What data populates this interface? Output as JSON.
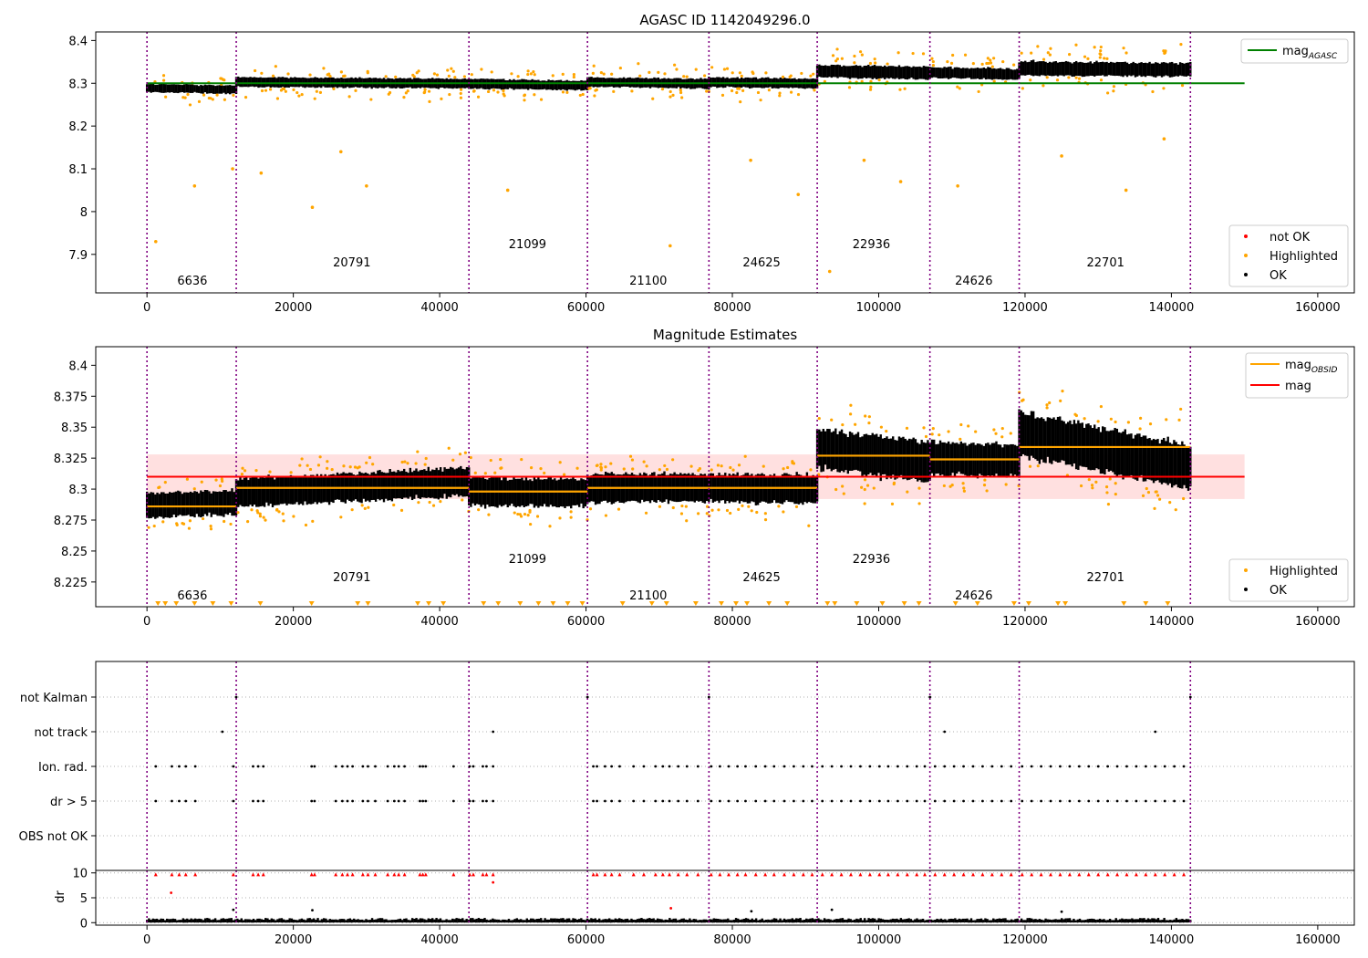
{
  "chart_data": [
    {
      "type": "scatter",
      "title": "AGASC ID 1142049296.0",
      "xlim": [
        -7000,
        165000
      ],
      "ylim": [
        7.81,
        8.42
      ],
      "x_ticks": [
        0,
        20000,
        40000,
        60000,
        80000,
        100000,
        120000,
        140000,
        160000
      ],
      "y_ticks": [
        7.9,
        8.0,
        8.1,
        8.2,
        8.3,
        8.4
      ],
      "obs_boundaries": [
        0,
        12200,
        44000,
        60200,
        76800,
        91600,
        107000,
        119200,
        142600
      ],
      "obsids": [
        {
          "label": "6636",
          "x": 6200,
          "level": "low"
        },
        {
          "label": "20791",
          "x": 28000,
          "level": "mid"
        },
        {
          "label": "21099",
          "x": 52000,
          "level": "high"
        },
        {
          "label": "21100",
          "x": 68500,
          "level": "low"
        },
        {
          "label": "24625",
          "x": 84000,
          "level": "mid"
        },
        {
          "label": "22936",
          "x": 99000,
          "level": "high"
        },
        {
          "label": "24626",
          "x": 113000,
          "level": "low"
        },
        {
          "label": "22701",
          "x": 131000,
          "level": "mid"
        }
      ],
      "segment_levels": [
        8.287,
        8.301,
        8.297,
        8.301,
        8.301,
        8.326,
        8.323,
        8.333
      ],
      "mag_agasc": 8.3,
      "mag_agasc_x_range": [
        0,
        150000
      ],
      "highlighted_outliers": [
        {
          "x": 1200,
          "y": 7.93
        },
        {
          "x": 6500,
          "y": 8.06
        },
        {
          "x": 11700,
          "y": 8.1
        },
        {
          "x": 15600,
          "y": 8.09
        },
        {
          "x": 22600,
          "y": 8.01
        },
        {
          "x": 26500,
          "y": 8.14
        },
        {
          "x": 30000,
          "y": 8.06
        },
        {
          "x": 49300,
          "y": 8.05
        },
        {
          "x": 71500,
          "y": 7.92
        },
        {
          "x": 82500,
          "y": 8.12
        },
        {
          "x": 89000,
          "y": 8.04
        },
        {
          "x": 93300,
          "y": 7.86
        },
        {
          "x": 98000,
          "y": 8.12
        },
        {
          "x": 103000,
          "y": 8.07
        },
        {
          "x": 110800,
          "y": 8.06
        },
        {
          "x": 125000,
          "y": 8.13
        },
        {
          "x": 133800,
          "y": 8.05
        },
        {
          "x": 139000,
          "y": 8.17
        }
      ],
      "legend_lines": [
        {
          "label": "mag",
          "sub": "AGASC",
          "color": "#008000"
        }
      ],
      "legend_points": [
        {
          "label": "not OK",
          "color": "#ff0000"
        },
        {
          "label": "Highlighted",
          "color": "#ffa500"
        },
        {
          "label": "OK",
          "color": "#000000"
        }
      ],
      "legend_placement": [
        "top-right",
        "bottom-right"
      ],
      "grid": false
    },
    {
      "type": "scatter",
      "title": "Magnitude Estimates",
      "xlim": [
        -7000,
        165000
      ],
      "ylim": [
        8.205,
        8.415
      ],
      "x_ticks": [
        0,
        20000,
        40000,
        60000,
        80000,
        100000,
        120000,
        140000,
        160000
      ],
      "y_ticks": [
        8.225,
        8.25,
        8.275,
        8.3,
        8.325,
        8.35,
        8.375,
        8.4
      ],
      "obs_boundaries": [
        0,
        12200,
        44000,
        60200,
        76800,
        91600,
        107000,
        119200,
        142600
      ],
      "obsids": [
        {
          "label": "6636",
          "x": 6200,
          "level": "low"
        },
        {
          "label": "20791",
          "x": 28000,
          "level": "mid"
        },
        {
          "label": "21099",
          "x": 52000,
          "level": "high"
        },
        {
          "label": "21100",
          "x": 68500,
          "level": "low"
        },
        {
          "label": "24625",
          "x": 84000,
          "level": "mid"
        },
        {
          "label": "22936",
          "x": 99000,
          "level": "high"
        },
        {
          "label": "24626",
          "x": 113000,
          "level": "low"
        },
        {
          "label": "22701",
          "x": 131000,
          "level": "mid"
        }
      ],
      "mag_obsid": [
        8.286,
        8.301,
        8.298,
        8.301,
        8.301,
        8.327,
        8.324,
        8.334
      ],
      "mag": 8.31,
      "mag_band": [
        8.292,
        8.328
      ],
      "mag_x_range": [
        0,
        150000
      ],
      "segment_trends": [
        [
          8.287,
          8.289
        ],
        [
          8.297,
          8.306
        ],
        [
          8.298,
          8.297
        ],
        [
          8.301,
          8.301
        ],
        [
          8.301,
          8.3
        ],
        [
          8.333,
          8.322
        ],
        [
          8.325,
          8.323
        ],
        [
          8.345,
          8.318
        ]
      ],
      "floor_markers_x": [
        1500,
        2500,
        4000,
        6500,
        9000,
        11500,
        15500,
        22500,
        28800,
        30200,
        37000,
        38500,
        40500,
        46000,
        48000,
        51000,
        53500,
        55500,
        57500,
        59500,
        65000,
        69000,
        71000,
        75000,
        78500,
        80500,
        82000,
        85000,
        87500,
        93000,
        94000,
        97000,
        100500,
        103500,
        105500,
        110500,
        113500,
        118500,
        120500,
        124500,
        125500,
        133500,
        136500,
        139500
      ],
      "legend_lines": [
        {
          "label": "mag",
          "sub": "OBSID",
          "color": "#ffa500"
        },
        {
          "label": "mag",
          "sub": "",
          "color": "#ff0000"
        }
      ],
      "legend_points": [
        {
          "label": "Highlighted",
          "color": "#ffa500"
        },
        {
          "label": "OK",
          "color": "#000000"
        }
      ],
      "legend_placement": [
        "top-right",
        "bottom-right"
      ],
      "grid": false
    },
    {
      "type": "scatter",
      "title": "",
      "xlim": [
        -7000,
        165000
      ],
      "x_ticks": [
        0,
        20000,
        40000,
        60000,
        80000,
        100000,
        120000,
        140000,
        160000
      ],
      "flag_rows": [
        "not Kalman",
        "not track",
        "Ion. rad.",
        "dr > 5",
        "OBS not OK"
      ],
      "obs_boundaries": [
        0,
        12200,
        44000,
        60200,
        76800,
        91600,
        107000,
        119200,
        142600
      ],
      "not_kalman_x": [
        12200,
        60200,
        76800,
        107000,
        142600
      ],
      "not_track_x": [
        10300,
        47300,
        109000,
        137800
      ],
      "ion_rad_x": [
        1200,
        3400,
        4400,
        5300,
        6600,
        11800,
        14500,
        15200,
        15900,
        22500,
        22900,
        25800,
        26700,
        27400,
        28100,
        29500,
        30200,
        31200,
        32900,
        33800,
        34400,
        35200,
        37300,
        37700,
        38100,
        41900,
        44100,
        44600,
        45900,
        46400,
        47300,
        61000,
        61500,
        62600,
        63500,
        64600,
        66500,
        67900,
        69500,
        70500,
        71400,
        72600,
        73800,
        75300,
        77100,
        78300,
        79500,
        80700,
        81800,
        83200,
        84500,
        85700,
        87100,
        88400,
        89700,
        90900,
        92300,
        93600,
        94900,
        96200,
        97500,
        98800,
        100100,
        101300,
        102600,
        103900,
        105200,
        106300,
        107700,
        109000,
        110300,
        111600,
        112900,
        114200,
        115500,
        116800,
        118100,
        119600,
        120900,
        122200,
        123500,
        124800,
        126100,
        127400,
        128700,
        130000,
        131300,
        132600,
        133900,
        135200,
        136500,
        137800,
        139100,
        140400,
        141700
      ],
      "dr_gt5_x": [
        1200,
        3400,
        4400,
        5300,
        6600,
        11800,
        14500,
        15200,
        15900,
        22500,
        22900,
        25800,
        26700,
        27400,
        28100,
        29500,
        30200,
        31200,
        32900,
        33800,
        34400,
        35200,
        37300,
        37700,
        38100,
        41900,
        44100,
        44600,
        45900,
        46400,
        47300,
        61000,
        61500,
        62600,
        63500,
        64600,
        66500,
        67900,
        69500,
        70500,
        71400,
        72600,
        73800,
        75300,
        77100,
        78300,
        79500,
        80700,
        81800,
        83200,
        84500,
        85700,
        87100,
        88400,
        89700,
        90900,
        92300,
        93600,
        94900,
        96200,
        97500,
        98800,
        100100,
        101300,
        102600,
        103900,
        105200,
        106300,
        107700,
        109000,
        110300,
        111600,
        112900,
        114200,
        115500,
        116800,
        118100,
        119600,
        120900,
        122200,
        123500,
        124800,
        126100,
        127400,
        128700,
        130000,
        131300,
        132600,
        133900,
        135200,
        136500,
        137800,
        139100,
        140400,
        141700
      ],
      "grid": true
    },
    {
      "type": "scatter",
      "title": "",
      "ylabel": "dr",
      "xlim": [
        -7000,
        165000
      ],
      "ylim": [
        -0.5,
        10.5
      ],
      "x_ticks": [
        0,
        20000,
        40000,
        60000,
        80000,
        100000,
        120000,
        140000,
        160000
      ],
      "y_ticks": [
        0,
        5,
        10
      ],
      "obs_boundaries": [
        0,
        12200,
        44000,
        60200,
        76800,
        91600,
        107000,
        119200,
        142600
      ],
      "clipped_dr_x": [
        1200,
        3400,
        4400,
        5300,
        6600,
        11800,
        14500,
        15200,
        15900,
        22500,
        22900,
        25800,
        26700,
        27400,
        28100,
        29500,
        30200,
        31200,
        32900,
        33800,
        34400,
        35200,
        37300,
        37700,
        38100,
        41900,
        44100,
        44600,
        45900,
        46400,
        47300,
        61000,
        61500,
        62600,
        63500,
        64600,
        66500,
        67900,
        69500,
        70500,
        71400,
        72600,
        73800,
        75300,
        77100,
        78300,
        79500,
        80700,
        81800,
        83200,
        84500,
        85700,
        87100,
        88400,
        89700,
        90900,
        92300,
        93600,
        94900,
        96200,
        97500,
        98800,
        100100,
        101300,
        102600,
        103900,
        105200,
        106300,
        107700,
        109000,
        110300,
        111600,
        112900,
        114200,
        115500,
        116800,
        118100,
        119600,
        120900,
        122200,
        123500,
        124800,
        126100,
        127400,
        128700,
        130000,
        131300,
        132600,
        133900,
        135200,
        136500,
        137800,
        139100,
        140400,
        141700
      ],
      "other_dr_points": [
        {
          "x": 3300,
          "y": 6.0,
          "color": "#ff0000"
        },
        {
          "x": 47300,
          "y": 8.1,
          "color": "#ff0000"
        },
        {
          "x": 71600,
          "y": 2.9,
          "color": "#ff0000"
        },
        {
          "x": 11800,
          "y": 2.6,
          "color": "#000000"
        },
        {
          "x": 22600,
          "y": 2.5,
          "color": "#000000"
        },
        {
          "x": 82600,
          "y": 2.3,
          "color": "#000000"
        },
        {
          "x": 93600,
          "y": 2.6,
          "color": "#000000"
        },
        {
          "x": 125000,
          "y": 2.2,
          "color": "#000000"
        }
      ],
      "dr_baseline": [
        0,
        0.8
      ],
      "grid": true
    }
  ]
}
